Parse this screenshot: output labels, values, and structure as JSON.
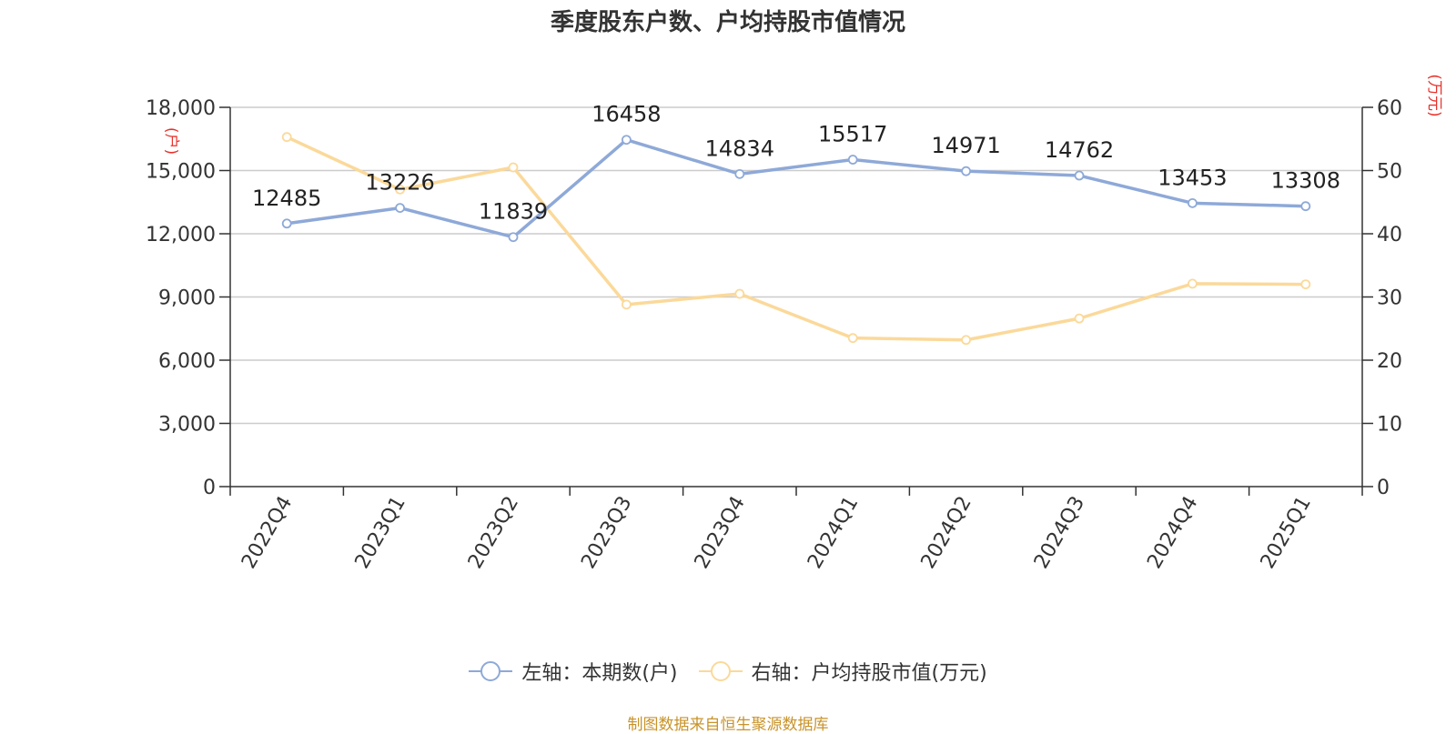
{
  "chart_data": {
    "type": "line",
    "title": "季度股东户数、户均持股市值情况",
    "categories": [
      "2022Q4",
      "2023Q1",
      "2023Q2",
      "2023Q3",
      "2023Q4",
      "2024Q1",
      "2024Q2",
      "2024Q3",
      "2024Q4",
      "2025Q1"
    ],
    "y_left": {
      "label": "(户)",
      "min": 0,
      "max": 18000,
      "ticks": [
        "0",
        "3,000",
        "6,000",
        "9,000",
        "12,000",
        "15,000",
        "18,000"
      ]
    },
    "y_right": {
      "label": "(万元)",
      "min": 0,
      "max": 60,
      "ticks": [
        "0",
        "10",
        "20",
        "30",
        "40",
        "50",
        "60"
      ]
    },
    "grid": true,
    "legend_position": "bottom",
    "series": [
      {
        "name": "左轴：本期数(户)",
        "axis": "left",
        "color": "#8ea9d8",
        "values": [
          12485,
          13226,
          11839,
          16458,
          14834,
          15517,
          14971,
          14762,
          13453,
          13308
        ],
        "data_labels": [
          "12485",
          "13226",
          "11839",
          "16458",
          "14834",
          "15517",
          "14971",
          "14762",
          "13453",
          "13308"
        ]
      },
      {
        "name": "右轴：户均持股市值(万元)",
        "axis": "right",
        "color": "#fbd99a",
        "values": [
          55.3,
          47.0,
          50.5,
          28.8,
          30.5,
          23.5,
          23.2,
          26.6,
          32.1,
          32.0
        ]
      }
    ],
    "source": "制图数据来自恒生聚源数据库"
  }
}
